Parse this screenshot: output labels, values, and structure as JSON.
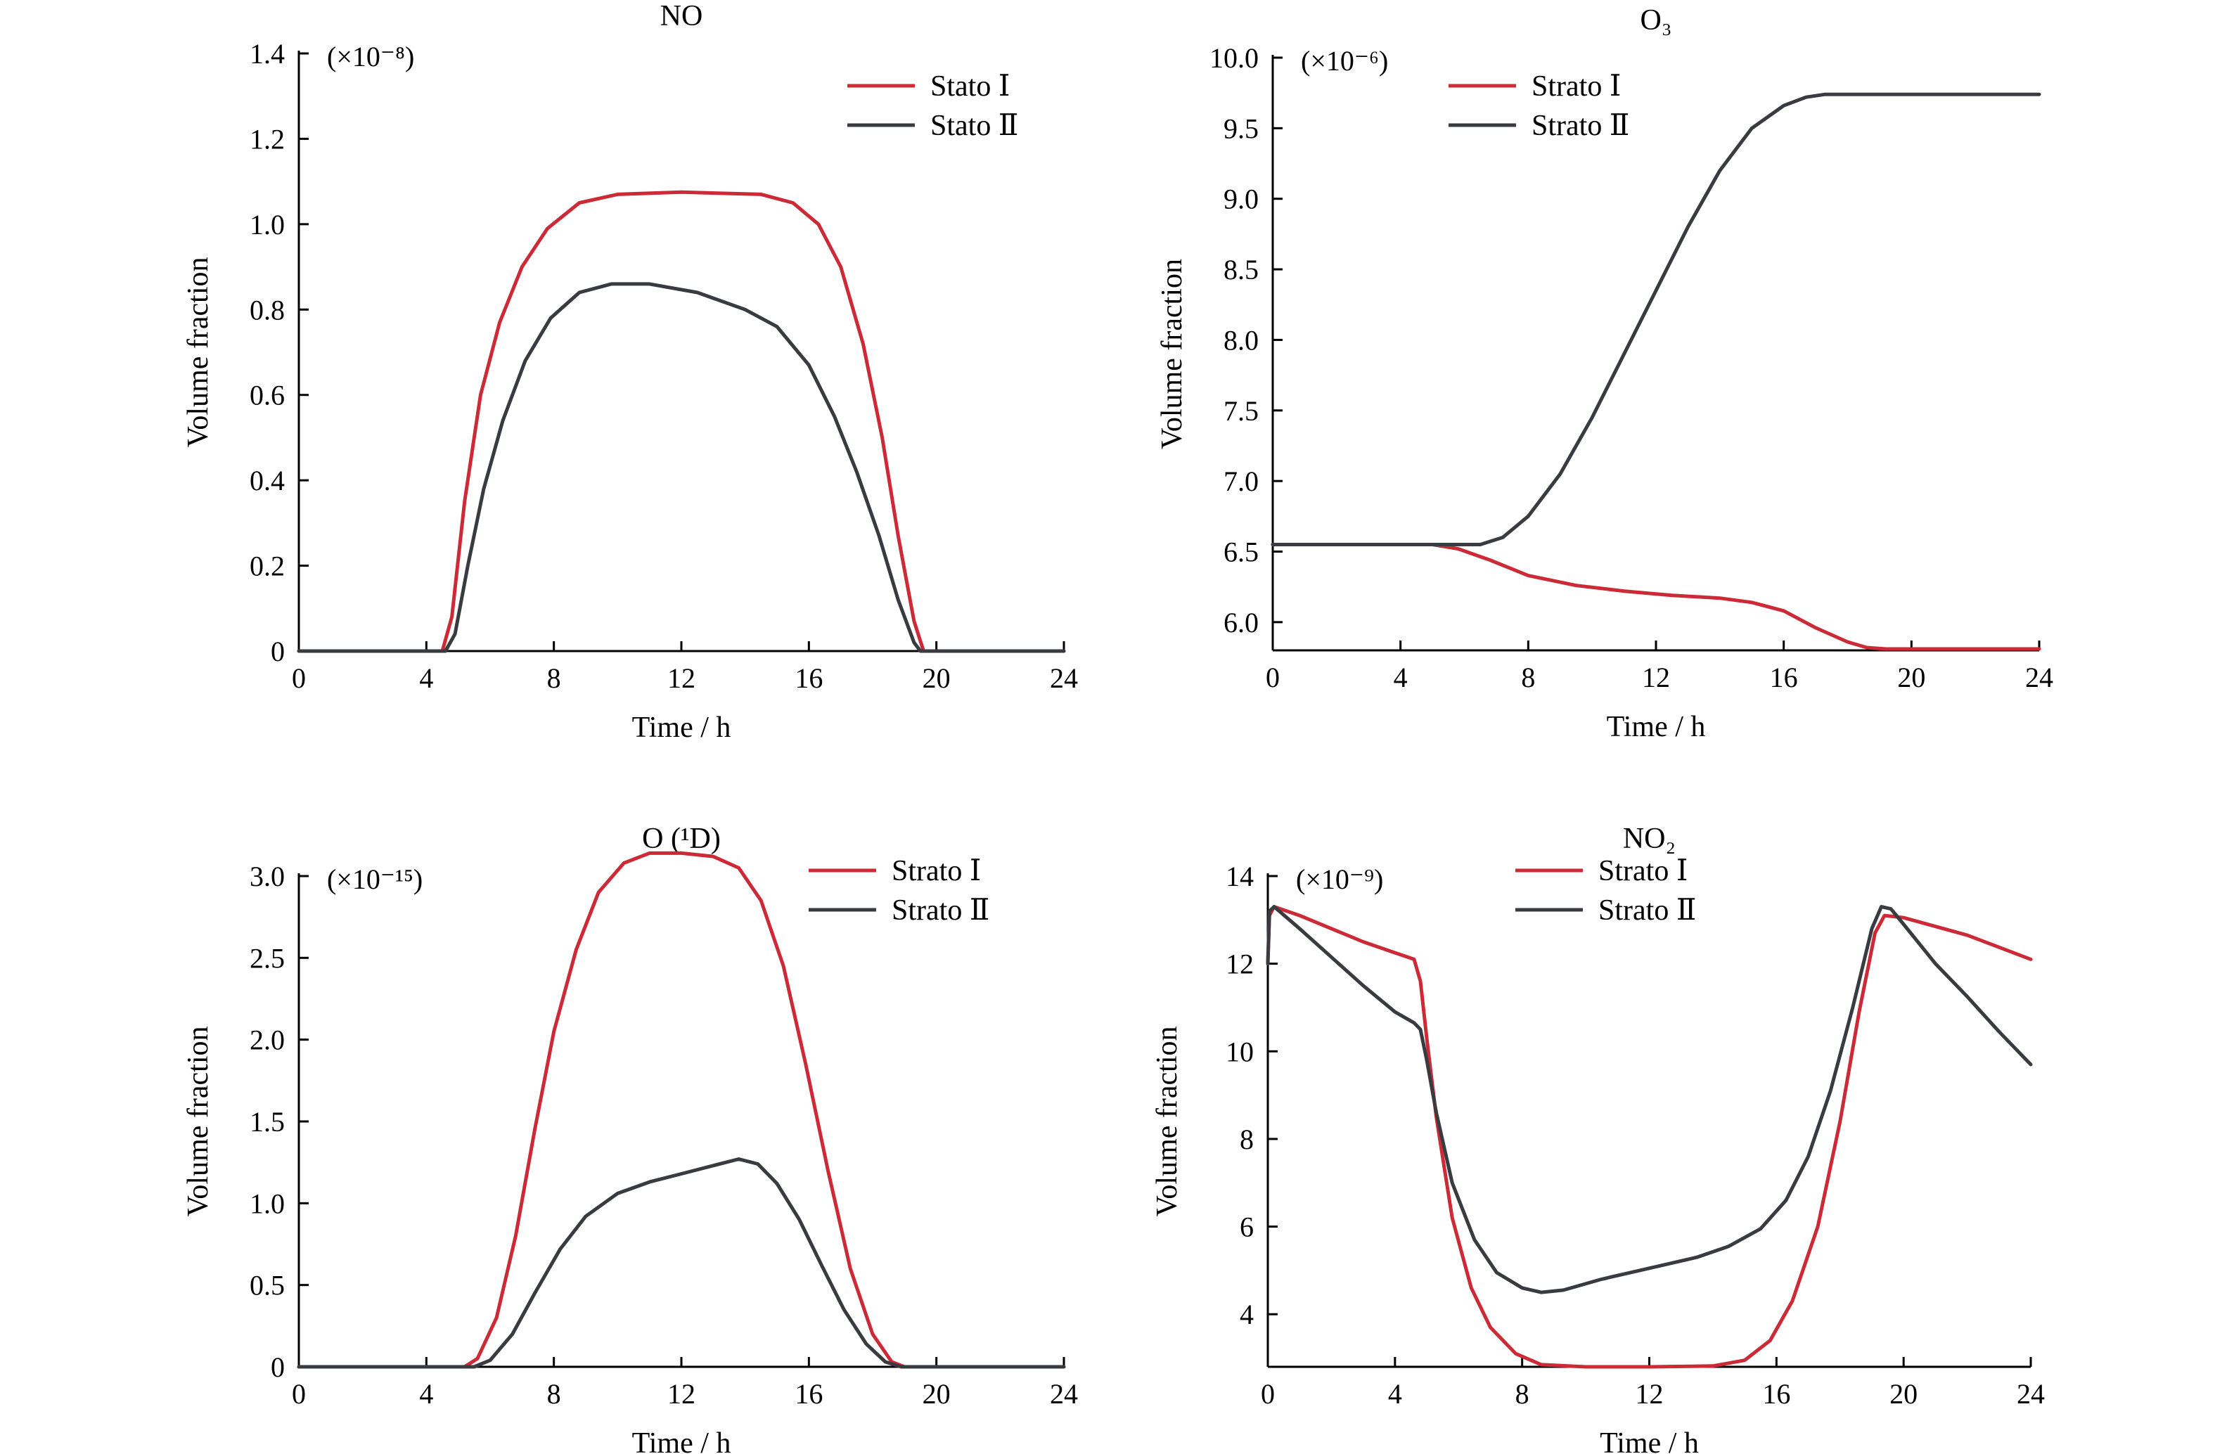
{
  "chart_data": [
    {
      "type": "line",
      "title": "NO",
      "multiplier": "(×10⁻⁸)",
      "xlabel": "Time / h",
      "ylabel": "Volume fraction",
      "xlim": [
        0,
        24
      ],
      "ylim": [
        0,
        1.4
      ],
      "xticks": [
        0,
        4,
        8,
        12,
        16,
        20,
        24
      ],
      "yticks": [
        0,
        0.2,
        0.4,
        0.6,
        0.8,
        1.0,
        1.2,
        1.4
      ],
      "yticklabels": [
        "0",
        "0.2",
        "0.4",
        "0.6",
        "0.8",
        "1.0",
        "1.2",
        "1.4"
      ],
      "grid": false,
      "legend_position": "top-right",
      "series": [
        {
          "name": "Stato Ⅰ",
          "color": "#cc2a36",
          "x": [
            0,
            4.5,
            4.8,
            5.2,
            5.7,
            6.3,
            7.0,
            7.8,
            8.8,
            10.0,
            12.0,
            14.5,
            15.5,
            16.3,
            17.0,
            17.7,
            18.3,
            18.8,
            19.3,
            19.6,
            20.0,
            24
          ],
          "y": [
            0,
            0,
            0.08,
            0.35,
            0.6,
            0.77,
            0.9,
            0.99,
            1.05,
            1.07,
            1.075,
            1.07,
            1.05,
            1.0,
            0.9,
            0.72,
            0.5,
            0.27,
            0.07,
            0,
            0,
            0
          ]
        },
        {
          "name": "Stato Ⅱ",
          "color": "#3a3b40",
          "x": [
            0,
            4.6,
            4.9,
            5.3,
            5.8,
            6.4,
            7.1,
            7.9,
            8.8,
            9.8,
            11.0,
            12.5,
            14.0,
            15.0,
            16.0,
            16.8,
            17.5,
            18.2,
            18.8,
            19.3,
            19.5,
            20.0,
            24
          ],
          "y": [
            0,
            0,
            0.04,
            0.2,
            0.38,
            0.54,
            0.68,
            0.78,
            0.84,
            0.86,
            0.86,
            0.84,
            0.8,
            0.76,
            0.67,
            0.55,
            0.42,
            0.27,
            0.12,
            0.02,
            0,
            0,
            0
          ]
        }
      ]
    },
    {
      "type": "line",
      "title": "O₃",
      "multiplier": "(×10⁻⁶)",
      "xlabel": "Time / h",
      "ylabel": "Volume fraction",
      "xlim": [
        0,
        24
      ],
      "ylim": [
        5.8,
        10.0
      ],
      "xticks": [
        0,
        4,
        8,
        12,
        16,
        20,
        24
      ],
      "yticks": [
        6.0,
        6.5,
        7.0,
        7.5,
        8.0,
        8.5,
        9.0,
        9.5,
        10.0
      ],
      "yticklabels": [
        "6.0",
        "6.5",
        "7.0",
        "7.5",
        "8.0",
        "8.5",
        "9.0",
        "9.5",
        "10.0"
      ],
      "grid": false,
      "legend_position": "top-center",
      "series": [
        {
          "name": "Strato Ⅰ",
          "color": "#cc2a36",
          "x": [
            0,
            5.0,
            5.8,
            6.8,
            8.0,
            9.5,
            11.0,
            12.5,
            14.0,
            15.0,
            16.0,
            17.0,
            18.0,
            18.6,
            19.2,
            24
          ],
          "y": [
            6.55,
            6.55,
            6.52,
            6.44,
            6.33,
            6.26,
            6.22,
            6.19,
            6.17,
            6.14,
            6.08,
            5.96,
            5.86,
            5.82,
            5.81,
            5.81
          ]
        },
        {
          "name": "Strato Ⅱ",
          "color": "#3a3b40",
          "x": [
            0,
            6.5,
            7.2,
            8.0,
            9.0,
            10.0,
            11.0,
            12.0,
            13.0,
            14.0,
            15.0,
            16.0,
            16.7,
            17.3,
            18.0,
            24
          ],
          "y": [
            6.55,
            6.55,
            6.6,
            6.75,
            7.05,
            7.45,
            7.9,
            8.35,
            8.8,
            9.2,
            9.5,
            9.66,
            9.72,
            9.74,
            9.74,
            9.74
          ]
        }
      ]
    },
    {
      "type": "line",
      "title": "O (¹D)",
      "multiplier": "(×10⁻¹⁵)",
      "xlabel": "Time / h",
      "ylabel": "Volume fraction",
      "xlim": [
        0,
        24
      ],
      "ylim": [
        0,
        3.0
      ],
      "xticks": [
        0,
        4,
        8,
        12,
        16,
        20,
        24
      ],
      "yticks": [
        0,
        0.5,
        1.0,
        1.5,
        2.0,
        2.5,
        3.0
      ],
      "yticklabels": [
        "0",
        "0.5",
        "1.0",
        "1.5",
        "2.0",
        "2.5",
        "3.0"
      ],
      "grid": false,
      "legend_position": "top-right",
      "series": [
        {
          "name": "Strato Ⅰ",
          "color": "#cc2a36",
          "x": [
            0,
            5.2,
            5.6,
            6.2,
            6.8,
            7.4,
            8.0,
            8.7,
            9.4,
            10.2,
            11.0,
            12.0,
            13.0,
            13.8,
            14.5,
            15.2,
            15.9,
            16.6,
            17.3,
            18.0,
            18.6,
            19.0,
            24
          ],
          "y": [
            0,
            0,
            0.05,
            0.3,
            0.8,
            1.45,
            2.05,
            2.55,
            2.9,
            3.08,
            3.14,
            3.14,
            3.12,
            3.05,
            2.85,
            2.45,
            1.85,
            1.2,
            0.6,
            0.2,
            0.03,
            0,
            0
          ]
        },
        {
          "name": "Strato Ⅱ",
          "color": "#3a3b40",
          "x": [
            0,
            5.5,
            6.0,
            6.7,
            7.4,
            8.2,
            9.0,
            10.0,
            11.0,
            12.0,
            13.0,
            13.8,
            14.4,
            15.0,
            15.7,
            16.4,
            17.1,
            17.8,
            18.4,
            18.9,
            24
          ],
          "y": [
            0,
            0,
            0.04,
            0.2,
            0.45,
            0.72,
            0.92,
            1.06,
            1.13,
            1.18,
            1.23,
            1.27,
            1.24,
            1.12,
            0.9,
            0.62,
            0.35,
            0.14,
            0.03,
            0,
            0
          ]
        }
      ]
    },
    {
      "type": "line",
      "title": "NO₂",
      "multiplier": "(×10⁻⁹)",
      "xlabel": "Time / h",
      "ylabel": "Volume fraction",
      "xlim": [
        0,
        24
      ],
      "ylim": [
        2.8,
        14
      ],
      "xticks": [
        0,
        4,
        8,
        12,
        16,
        20,
        24
      ],
      "yticks": [
        4,
        6,
        8,
        10,
        12,
        14
      ],
      "yticklabels": [
        "4",
        "6",
        "8",
        "10",
        "12",
        "14"
      ],
      "grid": false,
      "legend_position": "top-center",
      "series": [
        {
          "name": "Strato Ⅰ",
          "color": "#cc2a36",
          "x": [
            0,
            0.05,
            0.2,
            1.0,
            2.0,
            3.0,
            4.0,
            4.6,
            4.8,
            5.0,
            5.3,
            5.8,
            6.4,
            7.0,
            7.8,
            8.6,
            10.0,
            12.0,
            14.0,
            15.0,
            15.8,
            16.5,
            17.3,
            18.0,
            18.6,
            19.1,
            19.4,
            20.0,
            22.0,
            24.0
          ],
          "y": [
            12.0,
            13.1,
            13.3,
            13.1,
            12.8,
            12.5,
            12.25,
            12.1,
            11.6,
            10.3,
            8.5,
            6.2,
            4.6,
            3.7,
            3.1,
            2.85,
            2.8,
            2.8,
            2.82,
            2.95,
            3.4,
            4.3,
            6.0,
            8.4,
            10.9,
            12.7,
            13.1,
            13.05,
            12.65,
            12.1
          ]
        },
        {
          "name": "Strato Ⅱ",
          "color": "#3a3b40",
          "x": [
            0,
            0.05,
            0.2,
            1.0,
            2.0,
            3.0,
            4.0,
            4.6,
            4.8,
            5.0,
            5.3,
            5.8,
            6.5,
            7.2,
            8.0,
            8.6,
            9.3,
            10.5,
            12.0,
            13.5,
            14.5,
            15.5,
            16.3,
            17.0,
            17.7,
            18.4,
            19.0,
            19.3,
            19.6,
            20.0,
            21.0,
            22.0,
            23.0,
            24.0
          ],
          "y": [
            12.0,
            13.2,
            13.3,
            12.8,
            12.15,
            11.5,
            10.9,
            10.65,
            10.5,
            9.8,
            8.6,
            7.0,
            5.7,
            4.95,
            4.6,
            4.5,
            4.55,
            4.8,
            5.05,
            5.3,
            5.55,
            5.95,
            6.6,
            7.6,
            9.1,
            11.0,
            12.8,
            13.3,
            13.25,
            12.9,
            12.0,
            11.25,
            10.45,
            9.7
          ]
        }
      ]
    }
  ]
}
